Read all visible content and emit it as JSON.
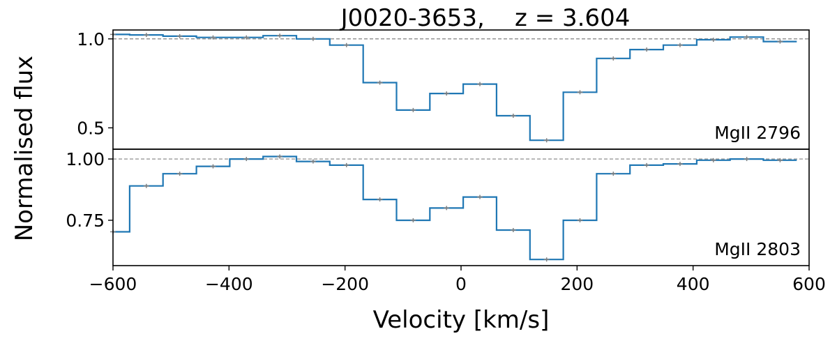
{
  "chart_data": {
    "type": "line",
    "title": "J0020-3653,    z = 3.604",
    "xlabel": "Velocity [km/s]",
    "ylabel": "Normalised flux",
    "xlim": [
      -600,
      600
    ],
    "xticks": [
      -600,
      -400,
      -200,
      0,
      200,
      400,
      600
    ],
    "xtick_labels": [
      "−600",
      "−400",
      "−200",
      "0",
      "200",
      "400",
      "600"
    ],
    "panels": [
      {
        "label": "MgII 2796",
        "ylim": [
          0.38,
          1.05
        ],
        "yticks": [
          0.5,
          1.0
        ],
        "ytick_labels": [
          "0.5",
          "1.0"
        ],
        "continuum": 1.0,
        "bin_width": 57.5,
        "x": [
          -600,
          -542.5,
          -485,
          -427.5,
          -370,
          -312.5,
          -255,
          -197.5,
          -140,
          -82.5,
          -25,
          32.5,
          90,
          147.5,
          205,
          262.5,
          320,
          377.5,
          435,
          492.5,
          550
        ],
        "flux": [
          1.025,
          1.022,
          1.015,
          1.008,
          1.008,
          1.018,
          1.0,
          0.965,
          0.754,
          0.6,
          0.693,
          0.746,
          0.568,
          0.43,
          0.7,
          0.89,
          0.94,
          0.965,
          0.995,
          1.01,
          0.985
        ]
      },
      {
        "label": "MgII 2803",
        "ylim": [
          0.565,
          1.04
        ],
        "yticks": [
          0.75,
          1.0
        ],
        "ytick_labels": [
          "0.75",
          "1.00"
        ],
        "continuum": 1.0,
        "bin_width": 57.5,
        "x": [
          -600,
          -542.5,
          -485,
          -427.5,
          -370,
          -312.5,
          -255,
          -197.5,
          -140,
          -82.5,
          -25,
          32.5,
          90,
          147.5,
          205,
          262.5,
          320,
          377.5,
          435,
          492.5,
          550
        ],
        "flux": [
          0.703,
          0.89,
          0.94,
          0.97,
          1.0,
          1.01,
          0.99,
          0.975,
          0.835,
          0.75,
          0.8,
          0.845,
          0.71,
          0.59,
          0.75,
          0.94,
          0.975,
          0.98,
          0.995,
          1.0,
          0.995
        ]
      }
    ],
    "colors": {
      "line": "#1f77b4",
      "error": "#808080",
      "continuum": "#808080"
    },
    "grid": false,
    "legend": "none"
  }
}
